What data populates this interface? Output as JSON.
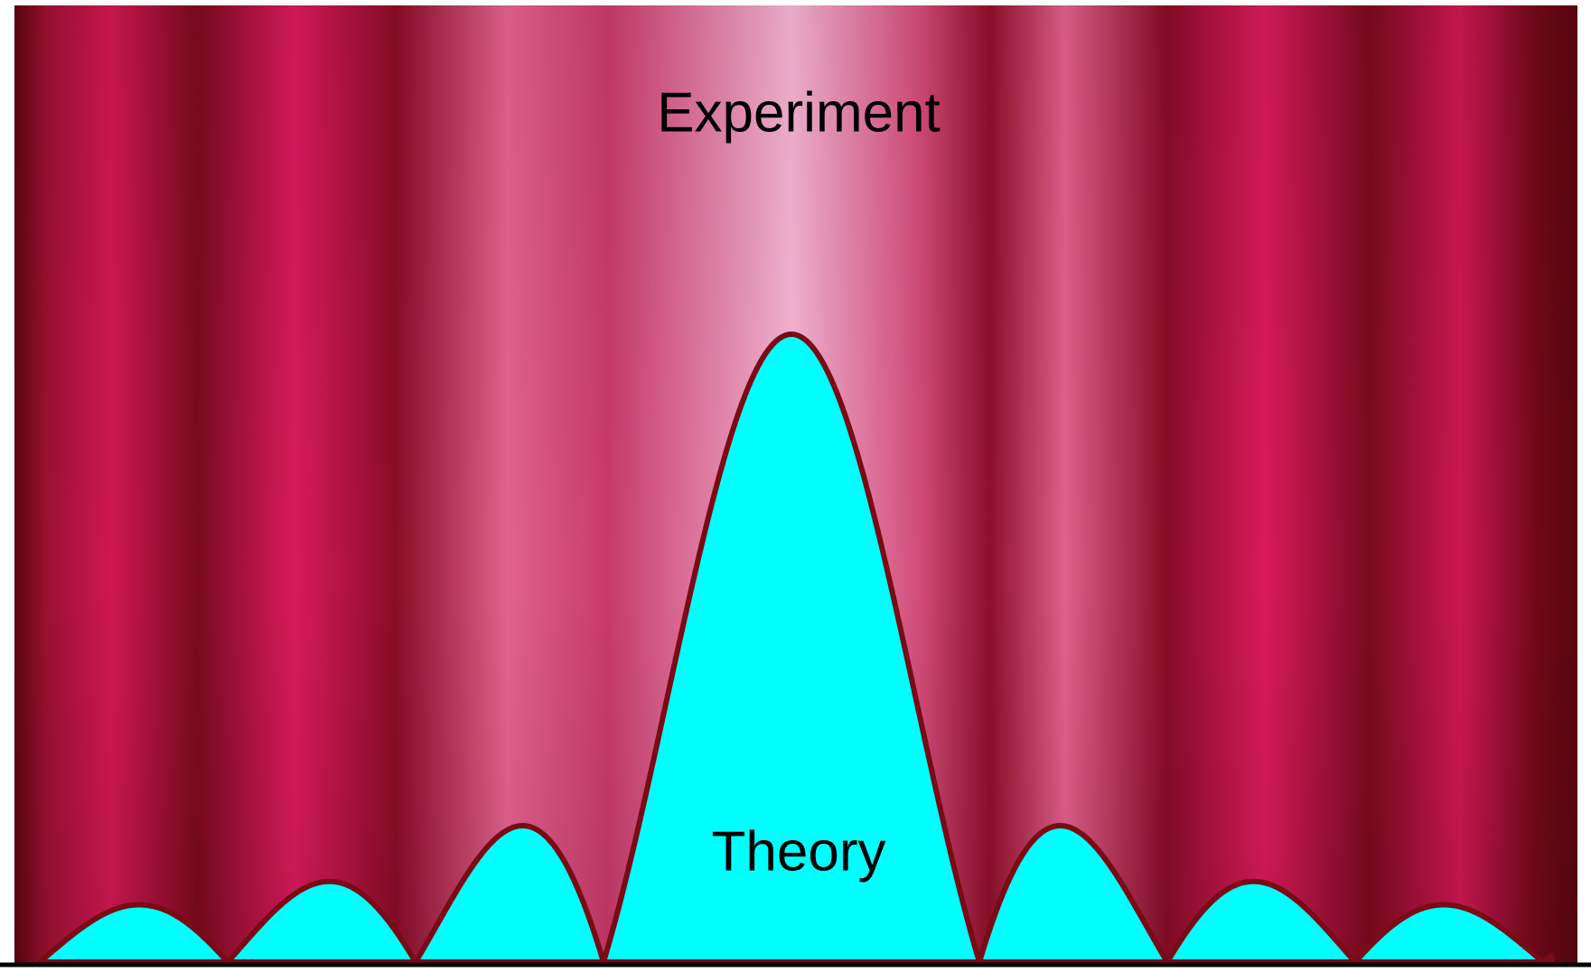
{
  "labels": {
    "experiment": "Experiment",
    "theory": "Theory"
  }
}
